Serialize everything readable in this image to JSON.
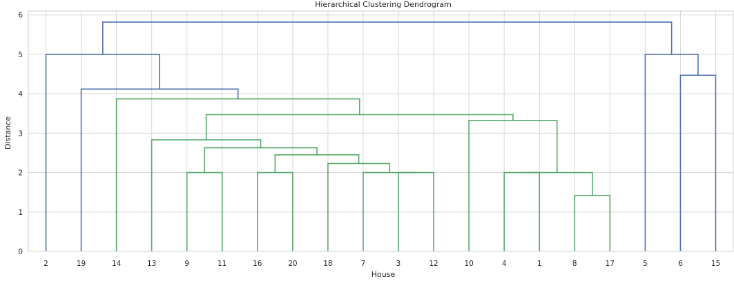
{
  "chart_data": {
    "type": "dendrogram",
    "title": "Hierarchical Clustering Dendrogram",
    "xlabel": "House",
    "ylabel": "Distance",
    "ylim": [
      0,
      6.1
    ],
    "yticks": [
      0,
      1,
      2,
      3,
      4,
      5,
      6
    ],
    "grid": true,
    "leaves": [
      "2",
      "19",
      "14",
      "13",
      "9",
      "11",
      "16",
      "20",
      "18",
      "7",
      "3",
      "12",
      "10",
      "4",
      "1",
      "8",
      "17",
      "5",
      "6",
      "15"
    ],
    "colors": {
      "above_threshold": "#4c72b0",
      "cluster": "#55a868"
    },
    "merges": [
      {
        "left": "8",
        "right": "17",
        "height": 1.42,
        "color": "cluster"
      },
      {
        "left": "9",
        "right": "11",
        "height": 2.0,
        "color": "cluster"
      },
      {
        "left": "16",
        "right": "20",
        "height": 2.0,
        "color": "cluster"
      },
      {
        "left": "3",
        "right": "12",
        "height": 2.0,
        "color": "cluster"
      },
      {
        "left": "7",
        "right": "3+12",
        "height": 2.0,
        "color": "cluster"
      },
      {
        "left": "4",
        "right": "1",
        "height": 2.0,
        "color": "cluster"
      },
      {
        "left": "4+1",
        "right": "8+17",
        "height": 2.0,
        "color": "cluster"
      },
      {
        "left": "18",
        "right": "7+3+12",
        "height": 2.23,
        "color": "cluster"
      },
      {
        "left": "16+20",
        "right": "18+7+3+12",
        "height": 2.45,
        "color": "cluster"
      },
      {
        "left": "9+11",
        "right": "16+20+18+7+3+12",
        "height": 2.63,
        "color": "cluster"
      },
      {
        "left": "13",
        "right": "9+11+16+20+18+7+3+12",
        "height": 2.83,
        "color": "cluster"
      },
      {
        "left": "10",
        "right": "4+1+8+17",
        "height": 3.32,
        "color": "cluster"
      },
      {
        "left": "13+9+11+16+20+18+7+3+12",
        "right": "10+4+1+8+17",
        "height": 3.47,
        "color": "cluster"
      },
      {
        "left": "14",
        "right": "13+9+11+16+20+18+7+3+12+10+4+1+8+17",
        "height": 3.87,
        "color": "cluster"
      },
      {
        "left": "19",
        "right": "14+13+9+11+16+20+18+7+3+12+10+4+1+8+17",
        "height": 4.12,
        "color": "above_threshold"
      },
      {
        "left": "2",
        "right": "19+14+13+9+11+16+20+18+7+3+12+10+4+1+8+17",
        "height": 5.0,
        "color": "above_threshold"
      },
      {
        "left": "6",
        "right": "15",
        "height": 4.47,
        "color": "above_threshold"
      },
      {
        "left": "5",
        "right": "6+15",
        "height": 5.0,
        "color": "above_threshold"
      },
      {
        "left": "2+19+14+13+9+11+16+20+18+7+3+12+10+4+1+8+17",
        "right": "5+6+15",
        "height": 5.82,
        "color": "above_threshold"
      }
    ]
  }
}
